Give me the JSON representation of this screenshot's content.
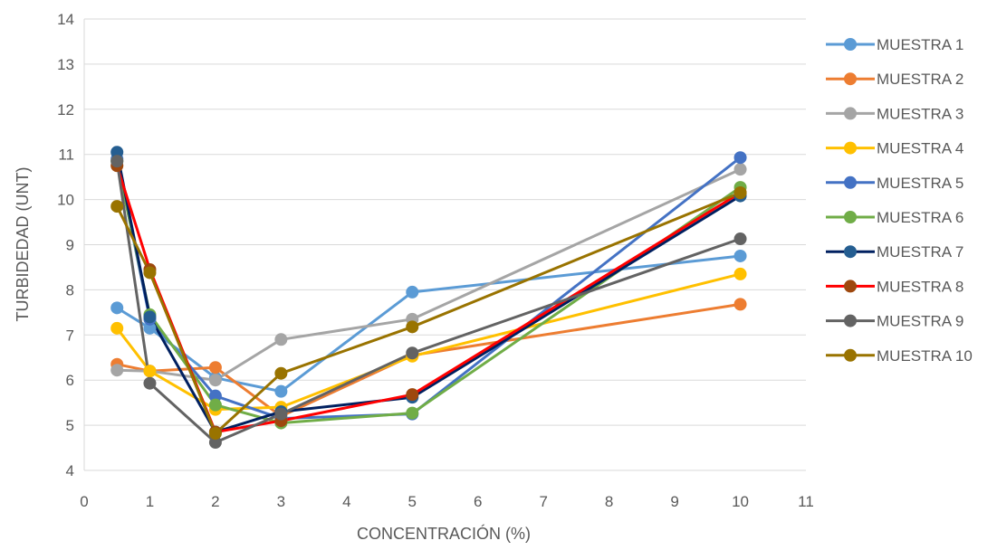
{
  "chart_data": {
    "type": "line",
    "title": "",
    "xlabel": "CONCENTRACIÓN (%)",
    "ylabel": "TURBIDEDAD (UNT)",
    "xlim": [
      0,
      11
    ],
    "ylim": [
      4,
      14
    ],
    "xticks": [
      0,
      1,
      2,
      3,
      4,
      5,
      6,
      7,
      8,
      9,
      10,
      11
    ],
    "yticks": [
      4,
      5,
      6,
      7,
      8,
      9,
      10,
      11,
      12,
      13,
      14
    ],
    "grid": "horizontal",
    "legend_position": "right",
    "x": [
      0.5,
      1,
      2,
      3,
      5,
      10
    ],
    "series": [
      {
        "name": "MUESTRA 1",
        "color": "#5B9BD5",
        "values": [
          7.6,
          7.15,
          6.05,
          5.75,
          7.95,
          8.75
        ]
      },
      {
        "name": "MUESTRA 2",
        "color": "#ED7D31",
        "values": [
          6.35,
          6.2,
          6.28,
          5.2,
          6.55,
          7.68
        ]
      },
      {
        "name": "MUESTRA 3",
        "color": "#A5A5A5",
        "values": [
          6.22,
          6.2,
          6.0,
          6.9,
          7.35,
          10.67
        ]
      },
      {
        "name": "MUESTRA 4",
        "color": "#FFC000",
        "values": [
          7.15,
          6.2,
          5.35,
          5.4,
          6.53,
          8.35
        ]
      },
      {
        "name": "MUESTRA 5",
        "color": "#4472C4",
        "values": [
          10.9,
          7.35,
          5.65,
          5.15,
          5.25,
          10.93
        ]
      },
      {
        "name": "MUESTRA 6",
        "color": "#70AD47",
        "values": [
          10.85,
          7.45,
          5.45,
          5.05,
          5.27,
          10.27
        ]
      },
      {
        "name": "MUESTRA 7",
        "color": "#255E91",
        "values": [
          11.05,
          7.4,
          4.85,
          5.3,
          5.62,
          10.08
        ]
      },
      {
        "name": "MUESTRA 8",
        "color": "#9E480E",
        "values": [
          10.75,
          8.45,
          4.85,
          5.1,
          5.68,
          10.15
        ]
      },
      {
        "name": "MUESTRA 9",
        "color": "#636363",
        "values": [
          10.85,
          5.93,
          4.62,
          5.25,
          6.6,
          9.13
        ]
      },
      {
        "name": "MUESTRA 10",
        "color": "#997300",
        "values": [
          9.85,
          8.38,
          4.82,
          6.15,
          7.18,
          10.15
        ]
      }
    ],
    "line_overrides": {
      "MUESTRA 7": "#002060",
      "MUESTRA 8": "#FF0000"
    }
  }
}
